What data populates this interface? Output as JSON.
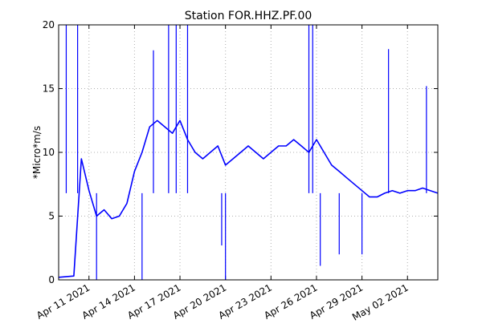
{
  "chart_data": {
    "type": "line",
    "title": "Station FOR.HHZ.PF.00",
    "ylabel": "*Micro*m/s",
    "xlabel": "",
    "x_start": "2021-04-09",
    "x_end": "2021-05-04",
    "ylim": [
      0,
      20
    ],
    "yticks": [
      "0",
      "5",
      "10",
      "15",
      "20"
    ],
    "xticks": [
      {
        "date": "2021-04-11",
        "label": "Apr 11 2021"
      },
      {
        "date": "2021-04-14",
        "label": "Apr 14 2021"
      },
      {
        "date": "2021-04-17",
        "label": "Apr 17 2021"
      },
      {
        "date": "2021-04-20",
        "label": "Apr 20 2021"
      },
      {
        "date": "2021-04-23",
        "label": "Apr 23 2021"
      },
      {
        "date": "2021-04-26",
        "label": "Apr 26 2021"
      },
      {
        "date": "2021-04-29",
        "label": "Apr 29 2021"
      },
      {
        "date": "2021-05-02",
        "label": "May 02 2021"
      }
    ],
    "grid": true,
    "line_color": "#0000ff",
    "series": [
      {
        "x": [
          "2021-04-09",
          "2021-04-10",
          "2021-04-10T12:00",
          "2021-04-11",
          "2021-04-11T12:00",
          "2021-04-12",
          "2021-04-12T12:00",
          "2021-04-13",
          "2021-04-13T12:00",
          "2021-04-14",
          "2021-04-14T12:00",
          "2021-04-15",
          "2021-04-15T12:00",
          "2021-04-16",
          "2021-04-16T12:00",
          "2021-04-17",
          "2021-04-17T12:00",
          "2021-04-18",
          "2021-04-18T12:00",
          "2021-04-19",
          "2021-04-19T12:00",
          "2021-04-20",
          "2021-04-20T12:00",
          "2021-04-21",
          "2021-04-21T12:00",
          "2021-04-22",
          "2021-04-22T12:00",
          "2021-04-23",
          "2021-04-23T12:00",
          "2021-04-24",
          "2021-04-24T12:00",
          "2021-04-25",
          "2021-04-25T12:00",
          "2021-04-26",
          "2021-04-26T12:00",
          "2021-04-27",
          "2021-04-27T12:00",
          "2021-04-28",
          "2021-04-28T12:00",
          "2021-04-29",
          "2021-04-29T12:00",
          "2021-04-30",
          "2021-04-30T12:00",
          "2021-05-01",
          "2021-05-01T12:00",
          "2021-05-02",
          "2021-05-02T12:00",
          "2021-05-03",
          "2021-05-03T12:00",
          "2021-05-04"
        ],
        "values": [
          0.2,
          0.3,
          9.5,
          7.0,
          5.0,
          5.5,
          4.8,
          5.0,
          6.0,
          8.5,
          10.0,
          12.0,
          12.5,
          12.0,
          11.5,
          12.5,
          11.0,
          10.0,
          9.5,
          10.0,
          10.5,
          9.0,
          9.5,
          10.0,
          10.5,
          10.0,
          9.5,
          10.0,
          10.5,
          10.5,
          11.0,
          10.5,
          10.0,
          11.0,
          10.0,
          9.0,
          8.5,
          8.0,
          7.5,
          7.0,
          6.5,
          6.5,
          6.8,
          7.0,
          6.8,
          7.0,
          7.0,
          7.2,
          7.0,
          6.8
        ]
      }
    ],
    "spikes": [
      {
        "x": "2021-04-09T12:00",
        "y": 20
      },
      {
        "x": "2021-04-10T06:00",
        "y": 20
      },
      {
        "x": "2021-04-11T12:00",
        "y": 0
      },
      {
        "x": "2021-04-14T12:00",
        "y": 0
      },
      {
        "x": "2021-04-15T06:00",
        "y": 18
      },
      {
        "x": "2021-04-16T06:00",
        "y": 20
      },
      {
        "x": "2021-04-16T18:00",
        "y": 20
      },
      {
        "x": "2021-04-17T12:00",
        "y": 20
      },
      {
        "x": "2021-04-19T18:00",
        "y": 2.7
      },
      {
        "x": "2021-04-20T00:00",
        "y": 0
      },
      {
        "x": "2021-04-25T12:00",
        "y": 20
      },
      {
        "x": "2021-04-25T18:00",
        "y": 20
      },
      {
        "x": "2021-04-26T06:00",
        "y": 1.1
      },
      {
        "x": "2021-04-27T12:00",
        "y": 2.0
      },
      {
        "x": "2021-04-29T00:00",
        "y": 2.0
      },
      {
        "x": "2021-04-30T18:00",
        "y": 18.1
      },
      {
        "x": "2021-05-03T06:00",
        "y": 15.2
      }
    ]
  }
}
